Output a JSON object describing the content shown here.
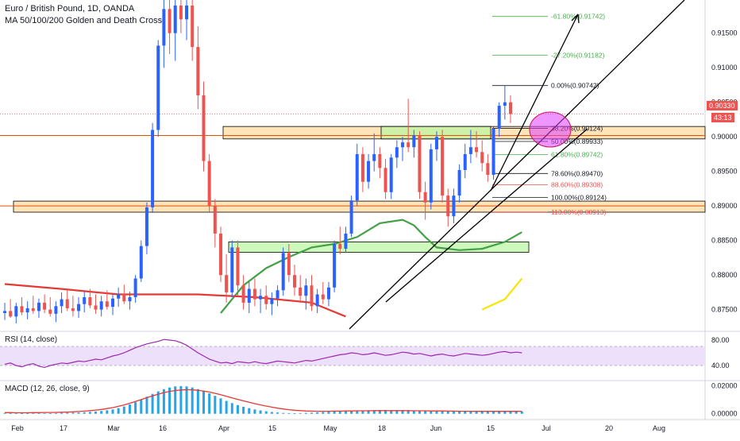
{
  "header": {
    "title": "Euro / British Pound, 1D, OANDA",
    "indicator": "MA 50/100/200 Golden and Death Cross"
  },
  "rsi": {
    "label": "RSI (14, close)",
    "ticks": [
      "80.00",
      "40.00"
    ]
  },
  "macd": {
    "label": "MACD (12, 26, close, 9)",
    "ticks": [
      "0.02000",
      "0.00000"
    ]
  },
  "price_badges": {
    "last": "0.90330",
    "countdown": "43:13"
  },
  "colors": {
    "up": "#2962ff",
    "down": "#ef5350",
    "ma_red": "#e53935",
    "ma_green": "#43a047",
    "ma_yellow": "#f6e600",
    "fib_green": "#4caf50",
    "fib_red": "#ef5350",
    "zone_orange": "#ffcc80",
    "zone_green": "#b9f6a0",
    "rsi_line": "#9c27b0",
    "rsi_band": "#ede0fb"
  },
  "chart_data": {
    "type": "candlestick",
    "title": "Euro / British Pound, 1D, OANDA",
    "y_axis": {
      "ticks": [
        "0.91500",
        "0.91000",
        "0.90500",
        "0.90000",
        "0.89500",
        "0.89000",
        "0.88500",
        "0.88000",
        "0.87500"
      ],
      "range": [
        0.8722,
        0.9198
      ]
    },
    "x_axis": {
      "ticks": [
        "Feb",
        "17",
        "Mar",
        "16",
        "Apr",
        "15",
        "May",
        "18",
        "Jun",
        "15",
        "Jul",
        "20",
        "Aug"
      ]
    },
    "fibonacci": [
      {
        "label": "-61.80%(0.91742)",
        "value": 0.91742,
        "color": "green"
      },
      {
        "label": "-27.20%(0.91182)",
        "value": 0.91182,
        "color": "green"
      },
      {
        "label": "0.00%(0.90742)",
        "value": 0.90742,
        "color": "black"
      },
      {
        "label": "38.20%(0.90124)",
        "value": 0.90124,
        "color": "black"
      },
      {
        "label": "50.00%(0.89933)",
        "value": 0.89933,
        "color": "black"
      },
      {
        "label": "61.80%(0.89742)",
        "value": 0.89742,
        "color": "green"
      },
      {
        "label": "78.60%(0.89470)",
        "value": 0.8947,
        "color": "black"
      },
      {
        "label": "88.60%(0.89308)",
        "value": 0.89308,
        "color": "red"
      },
      {
        "label": "100.00%(0.89124)",
        "value": 0.89124,
        "color": "black"
      },
      {
        "label": "113.00%(0.88913)",
        "value": 0.88913,
        "color": "red"
      }
    ],
    "zones": [
      {
        "color": "orange",
        "low": 0.8997,
        "high": 0.9015,
        "from": "Apr",
        "to": "end"
      },
      {
        "color": "orange",
        "low": 0.8891,
        "high": 0.8907,
        "from": "Feb",
        "to": "end"
      },
      {
        "color": "green",
        "low": 0.8997,
        "high": 0.9015,
        "from": "May-18",
        "to": "Jun-15"
      },
      {
        "color": "green",
        "low": 0.8833,
        "high": 0.8848,
        "from": "Apr",
        "to": "Jun-20"
      }
    ],
    "candles": [
      {
        "o": 0.8745,
        "h": 0.876,
        "l": 0.8735,
        "c": 0.8748
      },
      {
        "o": 0.8748,
        "h": 0.8765,
        "l": 0.8738,
        "c": 0.874
      },
      {
        "o": 0.874,
        "h": 0.876,
        "l": 0.873,
        "c": 0.8755
      },
      {
        "o": 0.8755,
        "h": 0.8768,
        "l": 0.8742,
        "c": 0.8746
      },
      {
        "o": 0.8746,
        "h": 0.8762,
        "l": 0.8736,
        "c": 0.8752
      },
      {
        "o": 0.8752,
        "h": 0.877,
        "l": 0.8744,
        "c": 0.8748
      },
      {
        "o": 0.8748,
        "h": 0.8766,
        "l": 0.8738,
        "c": 0.876
      },
      {
        "o": 0.876,
        "h": 0.8772,
        "l": 0.8745,
        "c": 0.875
      },
      {
        "o": 0.875,
        "h": 0.8768,
        "l": 0.874,
        "c": 0.8744
      },
      {
        "o": 0.8744,
        "h": 0.8762,
        "l": 0.8732,
        "c": 0.8755
      },
      {
        "o": 0.8755,
        "h": 0.8775,
        "l": 0.8745,
        "c": 0.8765
      },
      {
        "o": 0.8765,
        "h": 0.8778,
        "l": 0.8748,
        "c": 0.8752
      },
      {
        "o": 0.8752,
        "h": 0.877,
        "l": 0.874,
        "c": 0.8748
      },
      {
        "o": 0.8748,
        "h": 0.8768,
        "l": 0.8738,
        "c": 0.8758
      },
      {
        "o": 0.8758,
        "h": 0.8776,
        "l": 0.8746,
        "c": 0.8768
      },
      {
        "o": 0.8768,
        "h": 0.878,
        "l": 0.8752,
        "c": 0.8756
      },
      {
        "o": 0.8756,
        "h": 0.8772,
        "l": 0.8744,
        "c": 0.875
      },
      {
        "o": 0.875,
        "h": 0.877,
        "l": 0.874,
        "c": 0.8762
      },
      {
        "o": 0.8762,
        "h": 0.8778,
        "l": 0.875,
        "c": 0.8754
      },
      {
        "o": 0.8754,
        "h": 0.8772,
        "l": 0.8742,
        "c": 0.8766
      },
      {
        "o": 0.8766,
        "h": 0.8782,
        "l": 0.8754,
        "c": 0.8772
      },
      {
        "o": 0.8772,
        "h": 0.8786,
        "l": 0.8758,
        "c": 0.8762
      },
      {
        "o": 0.8762,
        "h": 0.8776,
        "l": 0.875,
        "c": 0.8768
      },
      {
        "o": 0.8768,
        "h": 0.88,
        "l": 0.876,
        "c": 0.8795
      },
      {
        "o": 0.8795,
        "h": 0.885,
        "l": 0.879,
        "c": 0.8842
      },
      {
        "o": 0.8842,
        "h": 0.8905,
        "l": 0.883,
        "c": 0.8898
      },
      {
        "o": 0.8898,
        "h": 0.902,
        "l": 0.889,
        "c": 0.901
      },
      {
        "o": 0.901,
        "h": 0.914,
        "l": 0.9,
        "c": 0.9132
      },
      {
        "o": 0.9132,
        "h": 0.9198,
        "l": 0.91,
        "c": 0.9185
      },
      {
        "o": 0.9185,
        "h": 0.9198,
        "l": 0.912,
        "c": 0.915
      },
      {
        "o": 0.915,
        "h": 0.9198,
        "l": 0.911,
        "c": 0.919
      },
      {
        "o": 0.919,
        "h": 0.9198,
        "l": 0.915,
        "c": 0.917
      },
      {
        "o": 0.917,
        "h": 0.9198,
        "l": 0.914,
        "c": 0.919
      },
      {
        "o": 0.919,
        "h": 0.9198,
        "l": 0.911,
        "c": 0.913
      },
      {
        "o": 0.913,
        "h": 0.916,
        "l": 0.904,
        "c": 0.906
      },
      {
        "o": 0.906,
        "h": 0.908,
        "l": 0.895,
        "c": 0.8965
      },
      {
        "o": 0.8965,
        "h": 0.8975,
        "l": 0.889,
        "c": 0.89
      },
      {
        "o": 0.89,
        "h": 0.891,
        "l": 0.884,
        "c": 0.886
      },
      {
        "o": 0.886,
        "h": 0.887,
        "l": 0.879,
        "c": 0.88
      },
      {
        "o": 0.88,
        "h": 0.883,
        "l": 0.876,
        "c": 0.8775
      },
      {
        "o": 0.8775,
        "h": 0.885,
        "l": 0.8768,
        "c": 0.884
      },
      {
        "o": 0.884,
        "h": 0.885,
        "l": 0.877,
        "c": 0.8785
      },
      {
        "o": 0.8785,
        "h": 0.88,
        "l": 0.875,
        "c": 0.876
      },
      {
        "o": 0.876,
        "h": 0.879,
        "l": 0.8745,
        "c": 0.878
      },
      {
        "o": 0.878,
        "h": 0.8795,
        "l": 0.8755,
        "c": 0.8765
      },
      {
        "o": 0.8765,
        "h": 0.878,
        "l": 0.8745,
        "c": 0.877
      },
      {
        "o": 0.877,
        "h": 0.8785,
        "l": 0.875,
        "c": 0.8758
      },
      {
        "o": 0.8758,
        "h": 0.8775,
        "l": 0.8742,
        "c": 0.8766
      },
      {
        "o": 0.8766,
        "h": 0.8785,
        "l": 0.8755,
        "c": 0.8778
      },
      {
        "o": 0.8778,
        "h": 0.884,
        "l": 0.877,
        "c": 0.8832
      },
      {
        "o": 0.8832,
        "h": 0.8845,
        "l": 0.879,
        "c": 0.88
      },
      {
        "o": 0.88,
        "h": 0.8815,
        "l": 0.877,
        "c": 0.8782
      },
      {
        "o": 0.8782,
        "h": 0.88,
        "l": 0.876,
        "c": 0.877
      },
      {
        "o": 0.877,
        "h": 0.8795,
        "l": 0.875,
        "c": 0.8785
      },
      {
        "o": 0.8785,
        "h": 0.88,
        "l": 0.8748,
        "c": 0.8755
      },
      {
        "o": 0.8755,
        "h": 0.878,
        "l": 0.8745,
        "c": 0.8772
      },
      {
        "o": 0.8772,
        "h": 0.879,
        "l": 0.8758,
        "c": 0.8765
      },
      {
        "o": 0.8765,
        "h": 0.879,
        "l": 0.8755,
        "c": 0.8782
      },
      {
        "o": 0.8782,
        "h": 0.885,
        "l": 0.8775,
        "c": 0.8845
      },
      {
        "o": 0.8845,
        "h": 0.887,
        "l": 0.883,
        "c": 0.8838
      },
      {
        "o": 0.8838,
        "h": 0.887,
        "l": 0.8832,
        "c": 0.886
      },
      {
        "o": 0.886,
        "h": 0.8915,
        "l": 0.8855,
        "c": 0.8908
      },
      {
        "o": 0.8908,
        "h": 0.899,
        "l": 0.89,
        "c": 0.8975
      },
      {
        "o": 0.8975,
        "h": 0.8985,
        "l": 0.892,
        "c": 0.8935
      },
      {
        "o": 0.8935,
        "h": 0.8975,
        "l": 0.8925,
        "c": 0.8965
      },
      {
        "o": 0.8965,
        "h": 0.9005,
        "l": 0.895,
        "c": 0.8975
      },
      {
        "o": 0.8975,
        "h": 0.8985,
        "l": 0.894,
        "c": 0.8955
      },
      {
        "o": 0.8955,
        "h": 0.8968,
        "l": 0.891,
        "c": 0.892
      },
      {
        "o": 0.892,
        "h": 0.8975,
        "l": 0.891,
        "c": 0.897
      },
      {
        "o": 0.897,
        "h": 0.8995,
        "l": 0.8955,
        "c": 0.8985
      },
      {
        "o": 0.8985,
        "h": 0.9,
        "l": 0.8965,
        "c": 0.8992
      },
      {
        "o": 0.8992,
        "h": 0.9055,
        "l": 0.8978,
        "c": 0.8985
      },
      {
        "o": 0.8985,
        "h": 0.901,
        "l": 0.897,
        "c": 0.9002
      },
      {
        "o": 0.9002,
        "h": 0.9008,
        "l": 0.891,
        "c": 0.892
      },
      {
        "o": 0.892,
        "h": 0.8935,
        "l": 0.888,
        "c": 0.8905
      },
      {
        "o": 0.8905,
        "h": 0.899,
        "l": 0.8895,
        "c": 0.8982
      },
      {
        "o": 0.8982,
        "h": 0.9008,
        "l": 0.8965,
        "c": 0.9
      },
      {
        "o": 0.9,
        "h": 0.901,
        "l": 0.8905,
        "c": 0.8915
      },
      {
        "o": 0.8915,
        "h": 0.8925,
        "l": 0.887,
        "c": 0.8885
      },
      {
        "o": 0.8885,
        "h": 0.8925,
        "l": 0.8875,
        "c": 0.8915
      },
      {
        "o": 0.8915,
        "h": 0.896,
        "l": 0.8905,
        "c": 0.8952
      },
      {
        "o": 0.8952,
        "h": 0.899,
        "l": 0.894,
        "c": 0.8975
      },
      {
        "o": 0.8975,
        "h": 0.901,
        "l": 0.8962,
        "c": 0.8985
      },
      {
        "o": 0.8985,
        "h": 0.9008,
        "l": 0.897,
        "c": 0.8978
      },
      {
        "o": 0.8978,
        "h": 0.8995,
        "l": 0.895,
        "c": 0.8962
      },
      {
        "o": 0.8962,
        "h": 0.8975,
        "l": 0.8935,
        "c": 0.8945
      },
      {
        "o": 0.8945,
        "h": 0.9015,
        "l": 0.8938,
        "c": 0.9012
      },
      {
        "o": 0.9012,
        "h": 0.905,
        "l": 0.9,
        "c": 0.9045
      },
      {
        "o": 0.9045,
        "h": 0.9074,
        "l": 0.9025,
        "c": 0.905
      },
      {
        "o": 0.905,
        "h": 0.906,
        "l": 0.902,
        "c": 0.9033
      }
    ],
    "moving_averages": [
      {
        "name": "MA 50",
        "color": "green",
        "points": [
          [
            38,
            0.8745
          ],
          [
            42,
            0.8785
          ],
          [
            46,
            0.881
          ],
          [
            50,
            0.8826
          ],
          [
            54,
            0.884
          ],
          [
            58,
            0.8845
          ],
          [
            62,
            0.8855
          ],
          [
            66,
            0.8875
          ],
          [
            70,
            0.888
          ],
          [
            72,
            0.8872
          ],
          [
            74,
            0.8855
          ],
          [
            76,
            0.884
          ],
          [
            80,
            0.8836
          ],
          [
            84,
            0.8838
          ],
          [
            88,
            0.8848
          ],
          [
            91,
            0.8862
          ]
        ]
      },
      {
        "name": "MA 100",
        "color": "red",
        "points": [
          [
            0,
            0.8787
          ],
          [
            10,
            0.878
          ],
          [
            20,
            0.8772
          ],
          [
            24,
            0.8772
          ],
          [
            34,
            0.8772
          ],
          [
            44,
            0.8768
          ],
          [
            54,
            0.876
          ],
          [
            60,
            0.874
          ]
        ]
      },
      {
        "name": "MA 200",
        "color": "yellow",
        "points": [
          [
            84,
            0.875
          ],
          [
            88,
            0.8765
          ],
          [
            91,
            0.8795
          ]
        ]
      }
    ],
    "rsi": {
      "range": [
        20,
        90
      ],
      "band": [
        40,
        70
      ],
      "values": [
        42,
        44,
        40,
        38,
        41,
        43,
        39,
        37,
        40,
        42,
        44,
        43,
        45,
        47,
        46,
        48,
        50,
        49,
        52,
        55,
        57,
        60,
        64,
        68,
        71,
        74,
        76,
        78,
        81,
        80,
        79,
        76,
        72,
        66,
        60,
        55,
        50,
        47,
        44,
        45,
        43,
        46,
        45,
        44,
        46,
        44,
        43,
        45,
        47,
        46,
        45,
        44,
        46,
        48,
        47,
        49,
        51,
        53,
        55,
        57,
        58,
        60,
        59,
        57,
        58,
        60,
        58,
        56,
        57,
        59,
        61,
        60,
        58,
        59,
        57,
        55,
        57,
        58,
        56,
        55,
        57,
        59,
        58,
        57,
        56,
        57,
        59,
        61,
        62,
        60,
        61,
        60
      ]
    },
    "macd": {
      "range": [
        -0.003,
        0.022
      ],
      "hist": [
        0.0005,
        0.0004,
        0.0005,
        0.0003,
        0.0004,
        0.0005,
        0.0006,
        0.0005,
        0.0004,
        0.0005,
        0.0006,
        0.0007,
        0.0008,
        0.0009,
        0.0011,
        0.0013,
        0.0016,
        0.002,
        0.0025,
        0.0031,
        0.004,
        0.0052,
        0.0066,
        0.0083,
        0.0102,
        0.0122,
        0.0142,
        0.016,
        0.0176,
        0.0188,
        0.0196,
        0.0198,
        0.0196,
        0.0188,
        0.0176,
        0.0162,
        0.0146,
        0.0128,
        0.011,
        0.0092,
        0.0076,
        0.0062,
        0.005,
        0.004,
        0.0031,
        0.0024,
        0.0018,
        0.0013,
        0.0009,
        0.0006,
        0.0005,
        0.0004,
        0.0005,
        0.0006,
        0.0008,
        0.001,
        0.0012,
        0.0014,
        0.0016,
        0.0018,
        0.002,
        0.0022,
        0.0023,
        0.0024,
        0.0025,
        0.0026,
        0.0027,
        0.0027,
        0.0026,
        0.0027,
        0.0026,
        0.0025,
        0.0024,
        0.0023,
        0.0022,
        0.0023,
        0.0021,
        0.002,
        0.0019,
        0.0018,
        0.0017,
        0.0016,
        0.0017,
        0.0016,
        0.0015,
        0.0014,
        0.0015,
        0.0016,
        0.0017,
        0.0018,
        0.0017,
        0.0016
      ],
      "line": [
        0.0008,
        0.0008,
        0.0007,
        0.0007,
        0.0007,
        0.0008,
        0.0008,
        0.0009,
        0.0009,
        0.001,
        0.0011,
        0.0012,
        0.0014,
        0.0016,
        0.0019,
        0.0022,
        0.0026,
        0.0031,
        0.0037,
        0.0044,
        0.0053,
        0.0063,
        0.0075,
        0.0088,
        0.0101,
        0.0115,
        0.0128,
        0.014,
        0.0151,
        0.016,
        0.0166,
        0.017,
        0.0172,
        0.0171,
        0.0168,
        0.0162,
        0.0155,
        0.0146,
        0.0136,
        0.0125,
        0.0114,
        0.0103,
        0.0092,
        0.0082,
        0.0072,
        0.0063,
        0.0055,
        0.0047,
        0.004,
        0.0034,
        0.0029,
        0.0025,
        0.0022,
        0.002,
        0.0019,
        0.0018,
        0.0018,
        0.0018,
        0.0019,
        0.0019,
        0.002,
        0.002,
        0.0021,
        0.0021,
        0.0021,
        0.0022,
        0.0022,
        0.0022,
        0.0022,
        0.0022,
        0.0022,
        0.0022,
        0.0021,
        0.0021,
        0.0021,
        0.002,
        0.002,
        0.002,
        0.0019,
        0.0019,
        0.0018,
        0.0018,
        0.0018,
        0.0017,
        0.0017,
        0.0017,
        0.0017,
        0.0017,
        0.0017,
        0.0017,
        0.0017,
        0.0017
      ]
    }
  }
}
